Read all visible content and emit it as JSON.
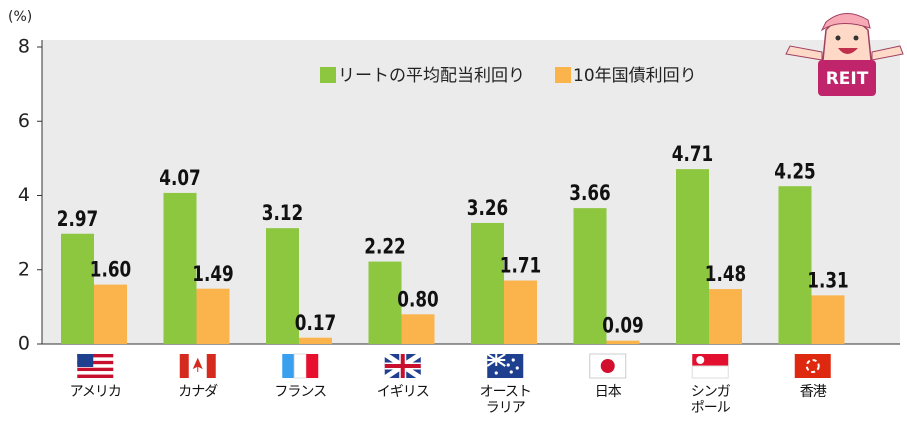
{
  "mascot_label": "REIT",
  "chart_data": {
    "type": "bar",
    "y_unit": "(%)",
    "categories": [
      "アメリカ",
      "カナダ",
      "フランス",
      "イギリス",
      "オースト\nラリア",
      "日本",
      "シンガ\nポール",
      "香港"
    ],
    "series": [
      {
        "name": "リートの平均配当利回り",
        "color": "#8dc63f",
        "values": [
          2.97,
          4.07,
          3.12,
          2.22,
          3.26,
          3.66,
          4.71,
          4.25
        ]
      },
      {
        "name": "10年国債利回り",
        "color": "#fbb34c",
        "values": [
          1.6,
          1.49,
          0.17,
          0.8,
          1.71,
          0.09,
          1.48,
          1.31
        ],
        "value_labels": [
          "1.60",
          "1.49",
          "0.17",
          "0.80",
          "1.71",
          "0.09",
          "1.48",
          "1.31"
        ]
      }
    ],
    "ylim": [
      0,
      8
    ],
    "yticks": [
      0,
      2,
      4,
      6,
      8
    ],
    "legend": "top"
  }
}
